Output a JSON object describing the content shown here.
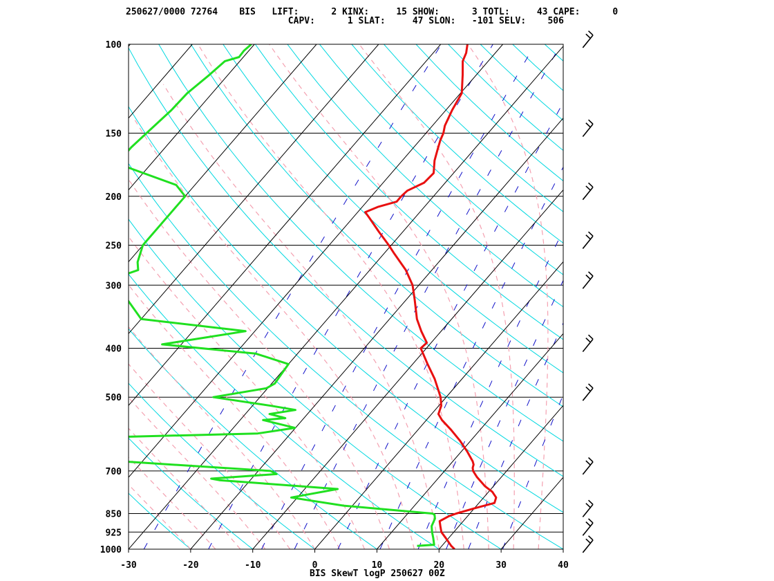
{
  "header": {
    "line1": "250627/0000 72764    BIS   LIFT:      2 KINX:     15 SHOW:      3 TOTL:     43 CAPE:      0",
    "line2": "                              CAPV:      1 SLAT:     47 SLON:   -101 SELV:    506"
  },
  "footer": "BIS SkewT logP 250627 00Z",
  "colors": {
    "isotherm": "#000000",
    "dry_adiabat": "#00d8e0",
    "moist_adiabat": "#f4a0b0",
    "mixing_ratio": "#1010c8",
    "temperature": "#e81010",
    "dewpoint": "#20e020"
  },
  "chart_data": {
    "type": "skewt",
    "station": "BIS",
    "title": "BIS SkewT logP 250627 00Z",
    "pressure_ticks": [
      "100",
      "150",
      "200",
      "250",
      "300",
      "400",
      "500",
      "700",
      "850",
      "925",
      "1000"
    ],
    "pressure_values": [
      100,
      150,
      200,
      250,
      300,
      400,
      500,
      700,
      850,
      925,
      1000
    ],
    "temp_ticks": [
      "-30",
      "-20",
      "-10",
      "0",
      "10",
      "20",
      "30",
      "40"
    ],
    "temp_values": [
      -30,
      -20,
      -10,
      0,
      10,
      20,
      30,
      40
    ],
    "xlim": [
      -30,
      40
    ],
    "ylim": [
      1000,
      100
    ],
    "y_scale": "log",
    "indices": {
      "LIFT": 2,
      "KINX": 15,
      "SHOW": 3,
      "TOTL": 43,
      "CAPE": 0,
      "CAPV": 1,
      "SLAT": 47,
      "SLON": -101,
      "SELV": 506
    },
    "series": [
      {
        "name": "temperature",
        "points": [
          [
            1000,
            22.5
          ],
          [
            985,
            21.5
          ],
          [
            950,
            19.5
          ],
          [
            925,
            18.0
          ],
          [
            900,
            17.0
          ],
          [
            880,
            16.2
          ],
          [
            860,
            17.0
          ],
          [
            850,
            17.8
          ],
          [
            830,
            20.0
          ],
          [
            810,
            22.5
          ],
          [
            790,
            22.0
          ],
          [
            770,
            20.6
          ],
          [
            750,
            18.6
          ],
          [
            720,
            16.1
          ],
          [
            700,
            14.6
          ],
          [
            690,
            14.1
          ],
          [
            680,
            13.8
          ],
          [
            670,
            13.2
          ],
          [
            640,
            10.9
          ],
          [
            610,
            8.3
          ],
          [
            580,
            5.3
          ],
          [
            555,
            2.5
          ],
          [
            540,
            1.1
          ],
          [
            520,
            0.4
          ],
          [
            500,
            -0.9
          ],
          [
            460,
            -4.4
          ],
          [
            430,
            -7.6
          ],
          [
            400,
            -10.9
          ],
          [
            390,
            -10.7
          ],
          [
            370,
            -13.2
          ],
          [
            350,
            -15.6
          ],
          [
            320,
            -18.7
          ],
          [
            300,
            -21.0
          ],
          [
            280,
            -24.2
          ],
          [
            260,
            -28.3
          ],
          [
            250,
            -30.4
          ],
          [
            235,
            -33.9
          ],
          [
            220,
            -37.5
          ],
          [
            215,
            -38.8
          ],
          [
            210,
            -37.5
          ],
          [
            205,
            -35.2
          ],
          [
            200,
            -35.2
          ],
          [
            195,
            -35.0
          ],
          [
            188,
            -33.4
          ],
          [
            180,
            -33.2
          ],
          [
            170,
            -34.8
          ],
          [
            162,
            -35.8
          ],
          [
            155,
            -36.7
          ],
          [
            150,
            -37.2
          ],
          [
            145,
            -38.0
          ],
          [
            135,
            -39.0
          ],
          [
            125,
            -39.8
          ],
          [
            115,
            -42.2
          ],
          [
            108,
            -44.1
          ],
          [
            104,
            -44.7
          ],
          [
            100,
            -45.7
          ]
        ]
      },
      {
        "name": "dewpoint",
        "points": [
          [
            985,
            16.0
          ],
          [
            980,
            18.6
          ],
          [
            950,
            17.5
          ],
          [
            925,
            16.5
          ],
          [
            900,
            15.6
          ],
          [
            870,
            15.1
          ],
          [
            855,
            14.5
          ],
          [
            850,
            14.0
          ],
          [
            820,
            -1.4
          ],
          [
            790,
            -11.0
          ],
          [
            760,
            -4.7
          ],
          [
            730,
            -25.0
          ],
          [
            725,
            -26.5
          ],
          [
            710,
            -16.6
          ],
          [
            700,
            -18.0
          ],
          [
            670,
            -43.4
          ],
          [
            640,
            -47.3
          ],
          [
            620,
            -48.0
          ],
          [
            600,
            -48.6
          ],
          [
            590,
            -25.3
          ],
          [
            575,
            -20.1
          ],
          [
            555,
            -26.3
          ],
          [
            550,
            -23.0
          ],
          [
            540,
            -26.1
          ],
          [
            530,
            -22.5
          ],
          [
            520,
            -27.0
          ],
          [
            500,
            -37.5
          ],
          [
            480,
            -30.2
          ],
          [
            470,
            -29.5
          ],
          [
            430,
            -30.0
          ],
          [
            410,
            -36.7
          ],
          [
            393,
            -53.1
          ],
          [
            370,
            -41.5
          ],
          [
            350,
            -60.0
          ],
          [
            320,
            -65.0
          ],
          [
            305,
            -70.0
          ],
          [
            300,
            -72.3
          ],
          [
            280,
            -67.3
          ],
          [
            270,
            -68.5
          ],
          [
            250,
            -70.0
          ],
          [
            215,
            -70.0
          ],
          [
            200,
            -70.0
          ],
          [
            190,
            -73.0
          ],
          [
            175,
            -83.5
          ],
          [
            165,
            -85.5
          ],
          [
            160,
            -85.5
          ],
          [
            150,
            -85.0
          ],
          [
            135,
            -84.2
          ],
          [
            125,
            -84.0
          ],
          [
            115,
            -83.0
          ],
          [
            108,
            -82.4
          ],
          [
            106,
            -80.7
          ],
          [
            103,
            -80.8
          ],
          [
            100,
            -80.5
          ]
        ]
      }
    ],
    "wind_barbs_pressure": [
      1000,
      925,
      850,
      700,
      500,
      400,
      300,
      250,
      200,
      150,
      100
    ]
  }
}
